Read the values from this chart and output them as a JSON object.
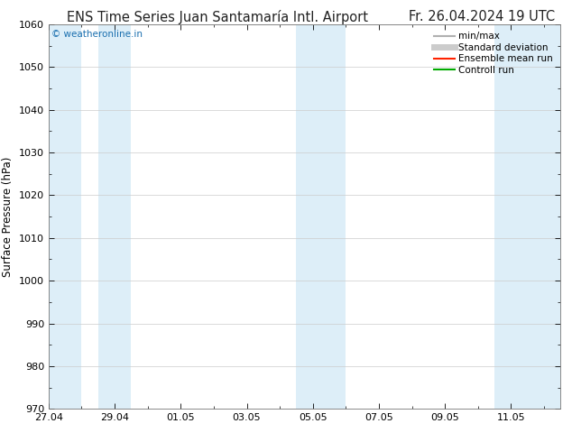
{
  "title_left": "ENS Time Series Juan Santamaría Intl. Airport",
  "title_right": "Fr. 26.04.2024 19 UTC",
  "ylabel": "Surface Pressure (hPa)",
  "ylim": [
    970,
    1060
  ],
  "yticks": [
    970,
    980,
    990,
    1000,
    1010,
    1020,
    1030,
    1040,
    1050,
    1060
  ],
  "xlabels": [
    "27.04",
    "29.04",
    "01.05",
    "03.05",
    "05.05",
    "07.05",
    "09.05",
    "11.05"
  ],
  "xvalues": [
    0,
    2,
    4,
    6,
    8,
    10,
    12,
    14
  ],
  "xlim": [
    0,
    15.5
  ],
  "watermark": "© weatheronline.in",
  "watermark_color": "#1a6faf",
  "background_color": "#ffffff",
  "band_color": "#ddeef8",
  "band_ranges": [
    [
      -0.1,
      1.0
    ],
    [
      1.5,
      2.5
    ],
    [
      7.5,
      9.0
    ],
    [
      13.5,
      15.5
    ]
  ],
  "legend_items": [
    {
      "label": "min/max",
      "color": "#b0b0b0",
      "lw": 1.5
    },
    {
      "label": "Standard deviation",
      "color": "#cccccc",
      "lw": 5
    },
    {
      "label": "Ensemble mean run",
      "color": "#ff2200",
      "lw": 1.5
    },
    {
      "label": "Controll run",
      "color": "#00aa00",
      "lw": 1.5
    }
  ],
  "grid_color": "#cccccc",
  "title_fontsize": 10.5,
  "tick_fontsize": 8,
  "ylabel_fontsize": 8.5,
  "watermark_fontsize": 7.5,
  "legend_fontsize": 7.5
}
